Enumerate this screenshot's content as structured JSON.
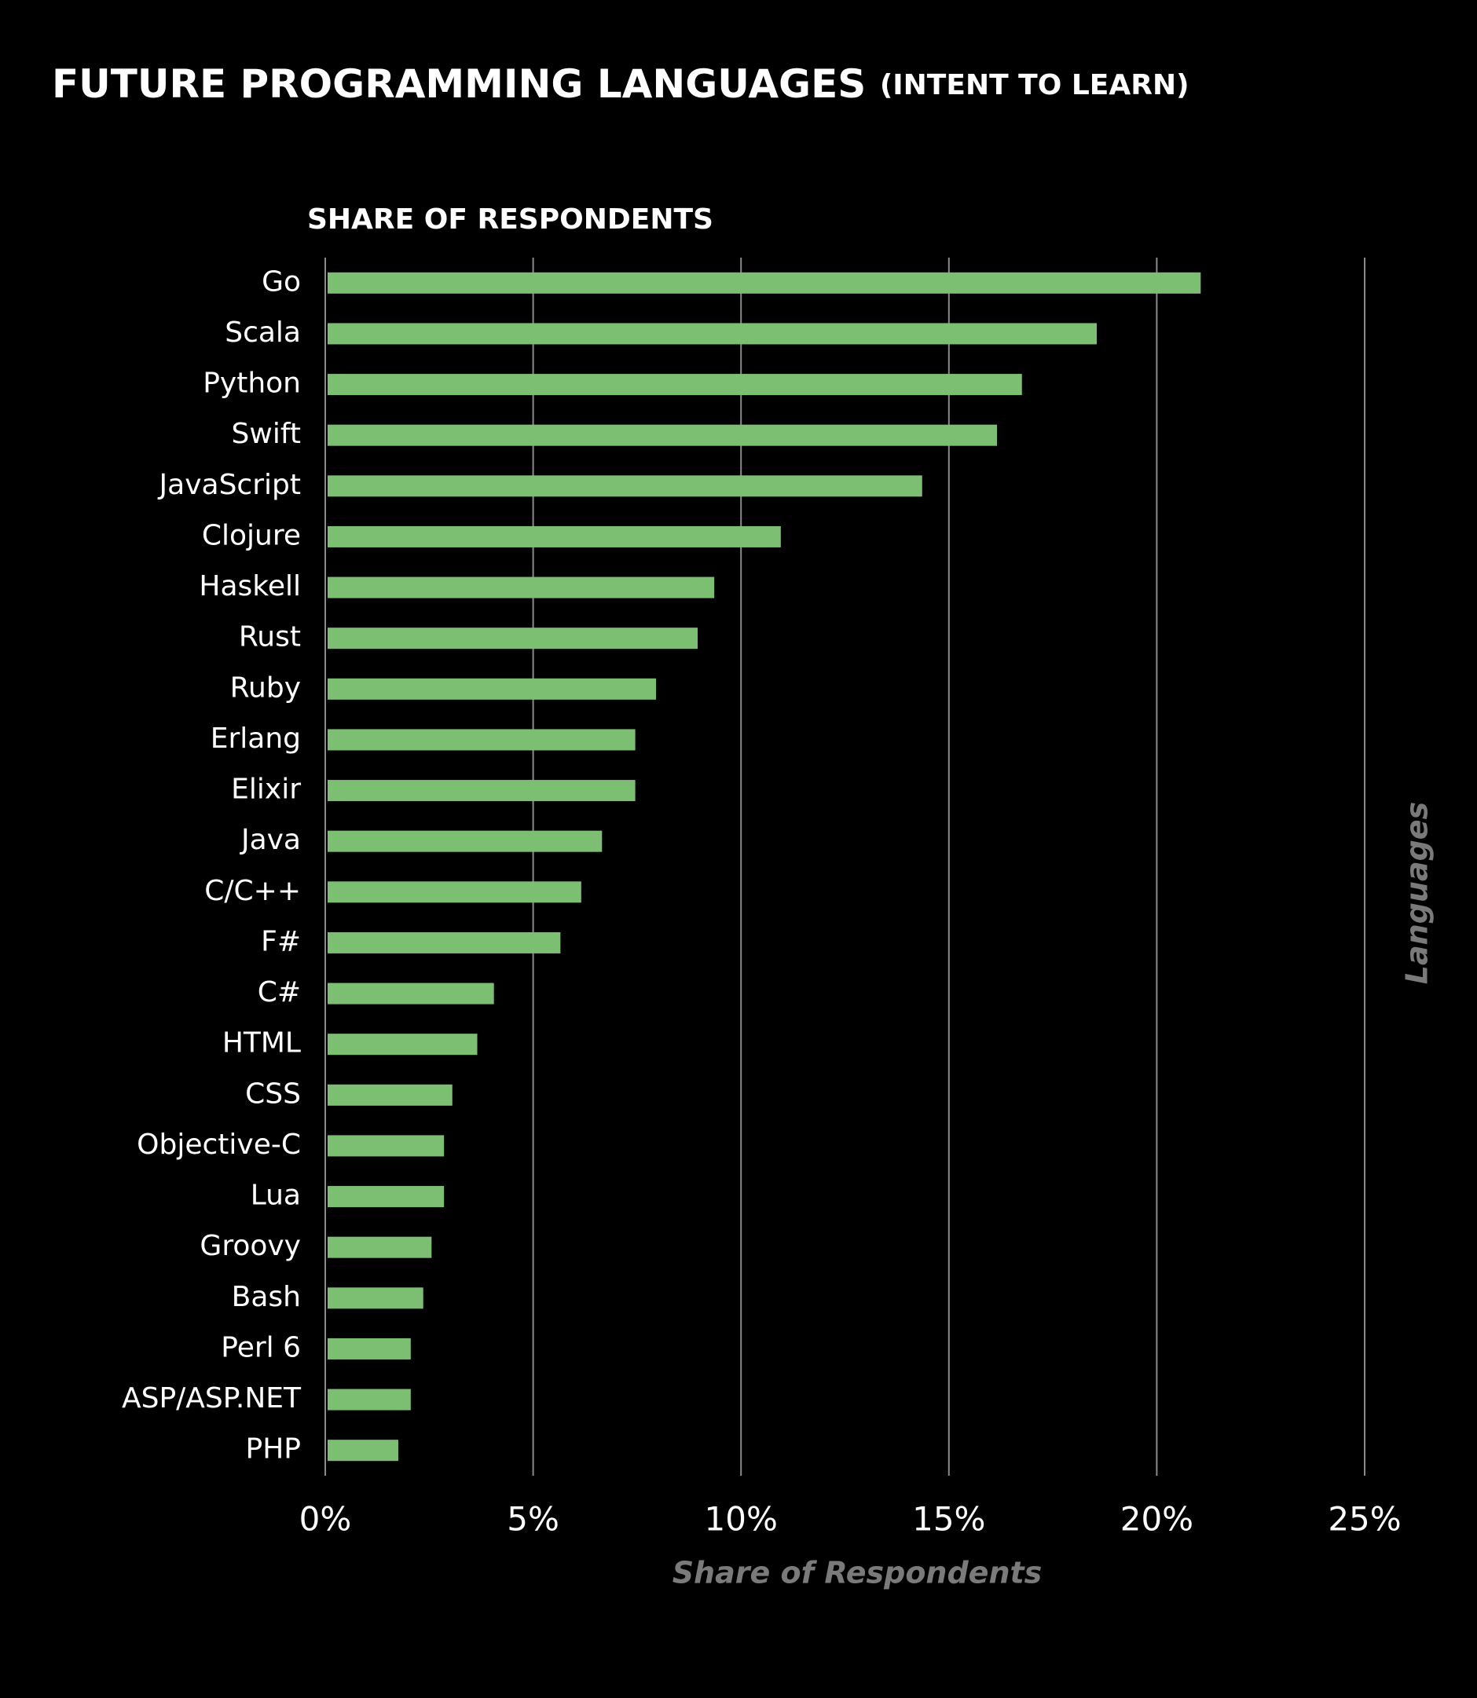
{
  "chart_data": {
    "type": "bar",
    "orientation": "horizontal",
    "title": "FUTURE PROGRAMMING LANGUAGES",
    "subtitle": "(INTENT TO LEARN)",
    "header": "SHARE OF RESPONDENTS",
    "x_label": "Share of Respondents",
    "y_label": "Languages",
    "categories": [
      "Go",
      "Scala",
      "Python",
      "Swift",
      "JavaScript",
      "Clojure",
      "Haskell",
      "Rust",
      "Ruby",
      "Erlang",
      "Elixir",
      "Java",
      "C/C++",
      "F#",
      "C#",
      "HTML",
      "CSS",
      "Objective-C",
      "Lua",
      "Groovy",
      "Bash",
      "Perl 6",
      "ASP/ASP.NET",
      "PHP"
    ],
    "values": [
      21.0,
      18.5,
      16.7,
      16.1,
      14.3,
      10.9,
      9.3,
      8.9,
      7.9,
      7.4,
      7.4,
      6.6,
      6.1,
      5.6,
      4.0,
      3.6,
      3.0,
      2.8,
      2.8,
      2.5,
      2.3,
      2.0,
      2.0,
      1.7
    ],
    "color": "#7dbf72",
    "xlim": [
      0,
      25
    ],
    "xticks": [
      {
        "value": 0,
        "label": "0%"
      },
      {
        "value": 5,
        "label": "5%"
      },
      {
        "value": 10,
        "label": "10%"
      },
      {
        "value": 15,
        "label": "15%"
      },
      {
        "value": 20,
        "label": "20%"
      },
      {
        "value": 25,
        "label": "25%"
      }
    ],
    "grid": true
  }
}
